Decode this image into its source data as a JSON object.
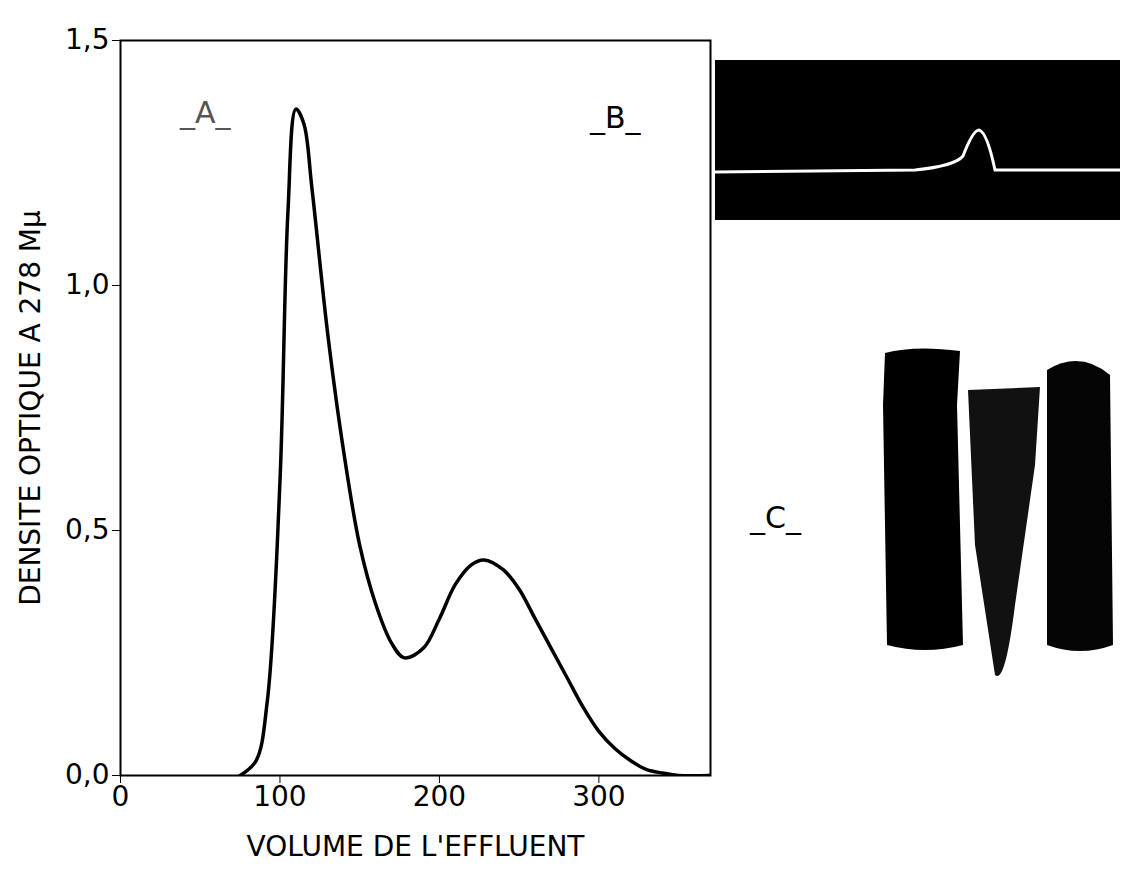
{
  "chart_data": {
    "type": "line",
    "x_label": "VOLUME DE L'EFFLUENT",
    "y_label": "DENSITE OPTIQUE A 278 Mμ",
    "x": [
      75,
      85,
      92,
      100,
      105,
      110,
      115,
      120,
      130,
      140,
      150,
      160,
      170,
      178,
      190,
      200,
      210,
      220,
      228,
      240,
      250,
      260,
      270,
      280,
      290,
      300,
      310,
      320,
      330,
      340,
      350,
      370
    ],
    "values": [
      0,
      0.03,
      0.15,
      0.6,
      1.15,
      1.36,
      1.33,
      1.2,
      0.9,
      0.66,
      0.47,
      0.35,
      0.27,
      0.24,
      0.26,
      0.32,
      0.39,
      0.43,
      0.44,
      0.42,
      0.38,
      0.32,
      0.26,
      0.2,
      0.14,
      0.09,
      0.055,
      0.03,
      0.012,
      0.005,
      0,
      0
    ],
    "color": "#000000",
    "xlim": [
      0,
      370
    ],
    "ylim": [
      0,
      1.5
    ],
    "xticks": [
      0,
      100,
      200,
      300
    ],
    "yticks": [
      {
        "value": 0,
        "label": "0,0"
      },
      {
        "value": 0.5,
        "label": "0,5"
      },
      {
        "value": 1,
        "label": "1,0"
      },
      {
        "value": 1.5,
        "label": "1,5"
      }
    ],
    "grid": false,
    "annotations": [
      "_A_",
      "_B_",
      "_C_"
    ]
  }
}
